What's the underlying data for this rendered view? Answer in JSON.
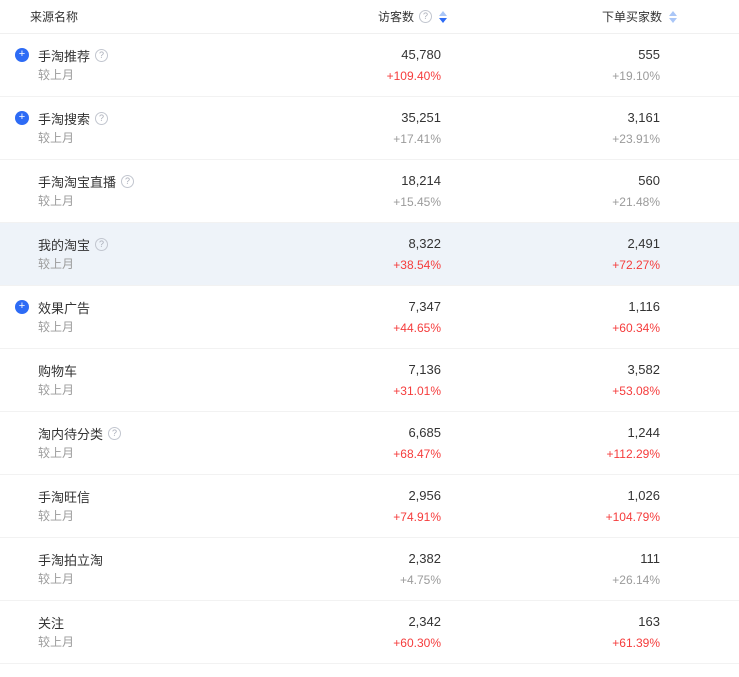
{
  "header": {
    "source_label": "来源名称",
    "visitors_label": "访客数",
    "buyers_label": "下单买家数"
  },
  "compare_label": "较上月",
  "sort": {
    "visitors_state": "descending",
    "buyers_state": "none"
  },
  "colors": {
    "accent_blue": "#2d6bf5",
    "sort_inactive_blue": "#aac6f7",
    "positive_red": "#f53c3c",
    "neutral_gray": "#9b9b9b",
    "row_highlight": "#eef3f9"
  },
  "rows": [
    {
      "name": "手淘推荐",
      "has_add": true,
      "has_help": true,
      "highlighted": false,
      "visitors": "45,780",
      "visitors_change": "+109.40%",
      "visitors_trend": "red",
      "buyers": "555",
      "buyers_change": "+19.10%",
      "buyers_trend": "gray"
    },
    {
      "name": "手淘搜索",
      "has_add": true,
      "has_help": true,
      "highlighted": false,
      "visitors": "35,251",
      "visitors_change": "+17.41%",
      "visitors_trend": "gray",
      "buyers": "3,161",
      "buyers_change": "+23.91%",
      "buyers_trend": "gray"
    },
    {
      "name": "手淘淘宝直播",
      "has_add": false,
      "has_help": true,
      "highlighted": false,
      "visitors": "18,214",
      "visitors_change": "+15.45%",
      "visitors_trend": "gray",
      "buyers": "560",
      "buyers_change": "+21.48%",
      "buyers_trend": "gray"
    },
    {
      "name": "我的淘宝",
      "has_add": false,
      "has_help": true,
      "highlighted": true,
      "visitors": "8,322",
      "visitors_change": "+38.54%",
      "visitors_trend": "red",
      "buyers": "2,491",
      "buyers_change": "+72.27%",
      "buyers_trend": "red"
    },
    {
      "name": "效果广告",
      "has_add": true,
      "has_help": false,
      "highlighted": false,
      "visitors": "7,347",
      "visitors_change": "+44.65%",
      "visitors_trend": "red",
      "buyers": "1,116",
      "buyers_change": "+60.34%",
      "buyers_trend": "red"
    },
    {
      "name": "购物车",
      "has_add": false,
      "has_help": false,
      "highlighted": false,
      "visitors": "7,136",
      "visitors_change": "+31.01%",
      "visitors_trend": "red",
      "buyers": "3,582",
      "buyers_change": "+53.08%",
      "buyers_trend": "red"
    },
    {
      "name": "淘内待分类",
      "has_add": false,
      "has_help": true,
      "highlighted": false,
      "visitors": "6,685",
      "visitors_change": "+68.47%",
      "visitors_trend": "red",
      "buyers": "1,244",
      "buyers_change": "+112.29%",
      "buyers_trend": "red"
    },
    {
      "name": "手淘旺信",
      "has_add": false,
      "has_help": false,
      "highlighted": false,
      "visitors": "2,956",
      "visitors_change": "+74.91%",
      "visitors_trend": "red",
      "buyers": "1,026",
      "buyers_change": "+104.79%",
      "buyers_trend": "red"
    },
    {
      "name": "手淘拍立淘",
      "has_add": false,
      "has_help": false,
      "highlighted": false,
      "visitors": "2,382",
      "visitors_change": "+4.75%",
      "visitors_trend": "gray",
      "buyers": "111",
      "buyers_change": "+26.14%",
      "buyers_trend": "gray"
    },
    {
      "name": "关注",
      "has_add": false,
      "has_help": false,
      "highlighted": false,
      "visitors": "2,342",
      "visitors_change": "+60.30%",
      "visitors_trend": "red",
      "buyers": "163",
      "buyers_change": "+61.39%",
      "buyers_trend": "red"
    }
  ]
}
